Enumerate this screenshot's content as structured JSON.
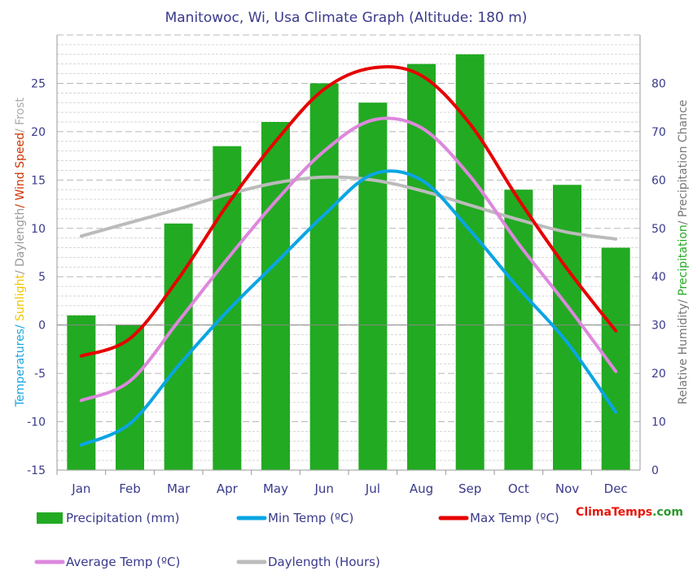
{
  "chart_data": {
    "type": "bar",
    "title": "Manitowoc, Wi, Usa Climate Graph (Altitude: 180 m)",
    "categories": [
      "Jan",
      "Feb",
      "Mar",
      "Apr",
      "May",
      "Jun",
      "Jul",
      "Aug",
      "Sep",
      "Oct",
      "Nov",
      "Dec"
    ],
    "left_axis": {
      "range": [
        -15,
        30
      ],
      "ticks": [
        -15,
        -10,
        -5,
        0,
        5,
        10,
        15,
        20,
        25
      ],
      "label_parts": [
        {
          "text": "Temperatures",
          "color": "#1ca6e0"
        },
        {
          "text": "/ ",
          "color": "#1ca6e0"
        },
        {
          "text": "Sunlight",
          "color": "#f2c500"
        },
        {
          "text": "/ ",
          "color": "#999999"
        },
        {
          "text": "Daylength",
          "color": "#999999"
        },
        {
          "text": "/ ",
          "color": "#cc3300"
        },
        {
          "text": "Wind Speed",
          "color": "#cc3300"
        },
        {
          "text": "/ ",
          "color": "#aaaaaa"
        },
        {
          "text": "Frost",
          "color": "#aaaaaa"
        }
      ]
    },
    "right_axis": {
      "range": [
        0,
        90
      ],
      "ticks": [
        0,
        10,
        20,
        30,
        40,
        50,
        60,
        70,
        80
      ],
      "label_parts": [
        {
          "text": "Relative Humidity",
          "color": "#777777"
        },
        {
          "text": "/ ",
          "color": "#777777"
        },
        {
          "text": "Precipitation",
          "color": "#22aa22"
        },
        {
          "text": "/ ",
          "color": "#777777"
        },
        {
          "text": "Precipitation Chance",
          "color": "#777777"
        }
      ]
    },
    "series": [
      {
        "name": "Precipitation (mm)",
        "kind": "bar",
        "axis": "right",
        "color": "#22aa22",
        "values": [
          32,
          30,
          51,
          67,
          72,
          80,
          76,
          84,
          86,
          58,
          59,
          46
        ]
      },
      {
        "name": "Min Temp (ºC)",
        "kind": "line",
        "axis": "left",
        "color": "#0aa5e3",
        "values": [
          -12.4,
          -10.2,
          -4.2,
          1.4,
          6.4,
          11.4,
          15.6,
          15.0,
          9.8,
          3.8,
          -1.8,
          -9.0
        ]
      },
      {
        "name": "Max Temp (ºC)",
        "kind": "line",
        "axis": "left",
        "color": "#e60000",
        "values": [
          -3.2,
          -1.4,
          4.8,
          12.4,
          19.0,
          24.4,
          26.6,
          25.8,
          20.8,
          13.0,
          5.8,
          -0.6
        ]
      },
      {
        "name": "Average Temp (ºC)",
        "kind": "line",
        "axis": "left",
        "color": "#dd88dd",
        "values": [
          -7.8,
          -5.8,
          0.4,
          6.8,
          12.8,
          18.0,
          21.2,
          20.4,
          15.4,
          8.4,
          2.0,
          -4.8
        ]
      },
      {
        "name": "Daylength (Hours)",
        "kind": "line",
        "axis": "left",
        "color": "#bbbbbb",
        "values": [
          9.2,
          10.6,
          12.0,
          13.5,
          14.7,
          15.3,
          15.0,
          13.9,
          12.4,
          10.9,
          9.6,
          8.9
        ]
      }
    ],
    "grid": true,
    "legend_position": "bottom"
  },
  "watermark": {
    "parts": [
      {
        "text": "Clima",
        "color": "#e8160c"
      },
      {
        "text": "Temps",
        "color": "#e8160c"
      },
      {
        "text": ".com",
        "color": "#2a9a2a"
      }
    ]
  }
}
